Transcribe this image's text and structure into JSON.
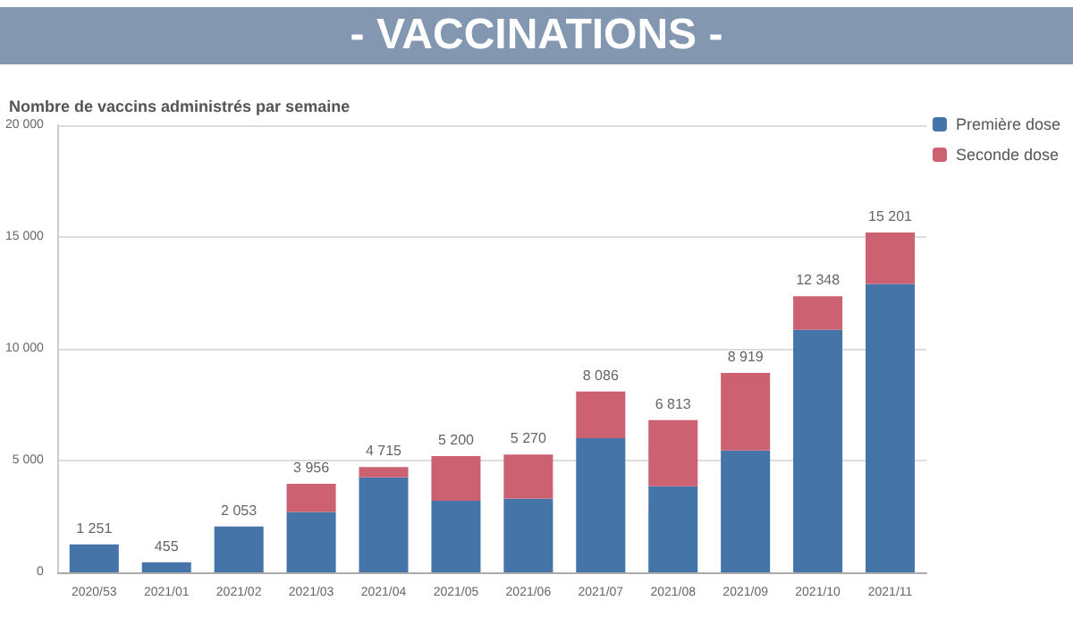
{
  "chart_data": {
    "type": "bar",
    "title": "- VACCINATIONS -",
    "ylabel": "Nombre de vaccins administrés par semaine",
    "categories": [
      "2020/53",
      "2021/01",
      "2021/02",
      "2021/03",
      "2021/04",
      "2021/05",
      "2021/06",
      "2021/07",
      "2021/08",
      "2021/09",
      "2021/10",
      "2021/11"
    ],
    "series": [
      {
        "name": "Première dose",
        "color": "#4575a8",
        "values": [
          1251,
          455,
          2053,
          2700,
          4250,
          3200,
          3300,
          6000,
          3850,
          5450,
          10850,
          12900
        ]
      },
      {
        "name": "Seconde dose",
        "color": "#cc6271",
        "values": [
          0,
          0,
          0,
          1256,
          465,
          2000,
          1970,
          2086,
          2963,
          3469,
          1498,
          2301
        ]
      }
    ],
    "stacked": true,
    "totals": [
      "1 251",
      "455",
      "2 053",
      "3 956",
      "4 715",
      "5 200",
      "5 270",
      "8 086",
      "6 813",
      "8 919",
      "12 348",
      "15 201"
    ],
    "ylim": [
      0,
      20000
    ],
    "yticks": [
      {
        "value": 0,
        "label": "0"
      },
      {
        "value": 5000,
        "label": "5 000"
      },
      {
        "value": 10000,
        "label": "10 000"
      },
      {
        "value": 15000,
        "label": "15 000"
      },
      {
        "value": 20000,
        "label": "20 000"
      }
    ],
    "grid": "y",
    "legend": "top right"
  }
}
